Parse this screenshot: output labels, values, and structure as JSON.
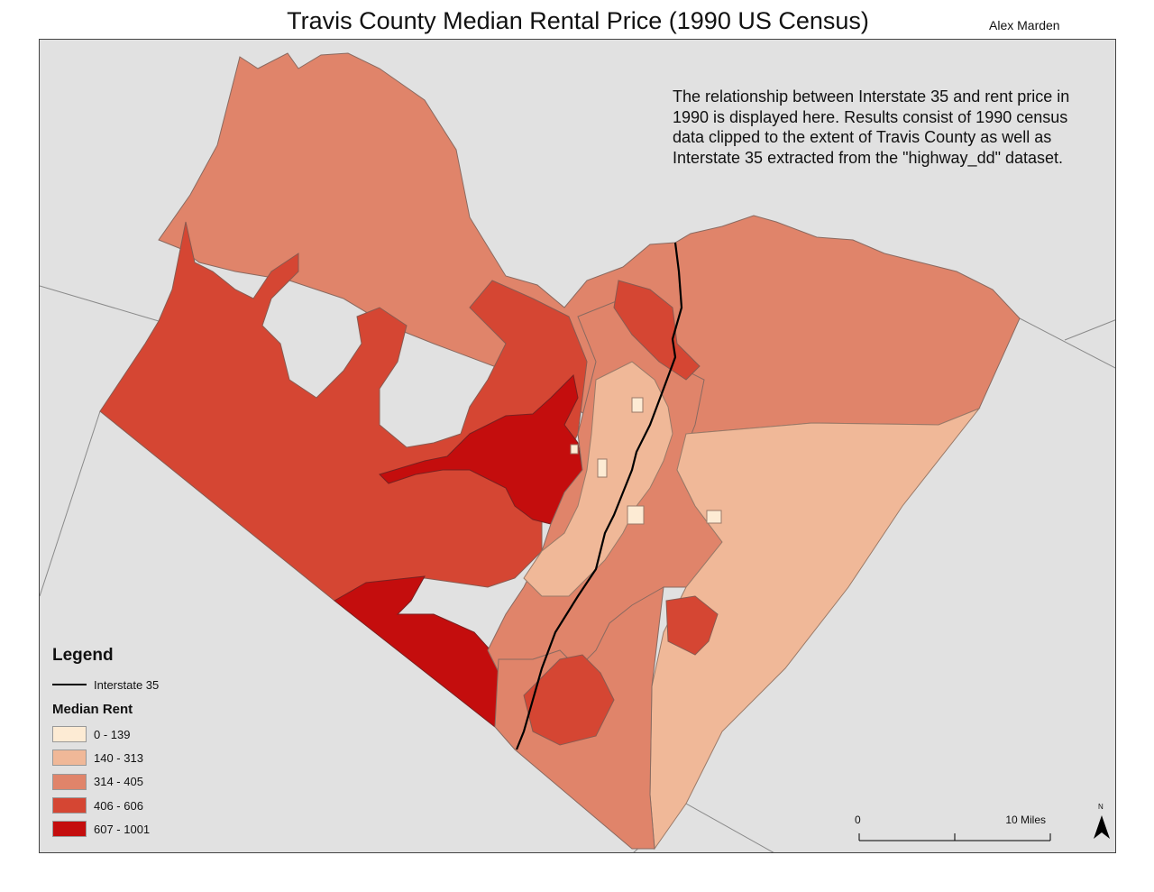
{
  "title": "Travis County Median Rental Price (1990 US Census)",
  "author": "Alex Marden",
  "description": "The relationship between Interstate 35 and rent price in 1990 is displayed here. Results consist of 1990 census data clipped to the extent of Travis County as well as Interstate 35 extracted from the \"highway_dd\" dataset.",
  "legend": {
    "title": "Legend",
    "line_label": "Interstate 35",
    "class_title": "Median Rent",
    "classes": [
      {
        "label": "0 - 139",
        "color": "#fdebd4"
      },
      {
        "label": "140 - 313",
        "color": "#f0b898"
      },
      {
        "label": "314 - 405",
        "color": "#e0846a"
      },
      {
        "label": "406 - 606",
        "color": "#d54633"
      },
      {
        "label": "607 - 1001",
        "color": "#c40d0d"
      }
    ]
  },
  "scale": {
    "start": "0",
    "end": "10 Miles"
  },
  "north_label": "N",
  "colors": {
    "background": "#e1e1e1",
    "boundary": "#7a7a7a",
    "interstate": "#000000"
  }
}
